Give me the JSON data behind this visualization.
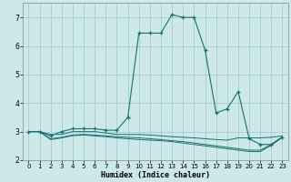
{
  "xlabel": "Humidex (Indice chaleur)",
  "ylabel": "",
  "background_color": "#cce8e8",
  "grid_color": "#aacccc",
  "line_color": "#1a7070",
  "xlim": [
    -0.5,
    23.5
  ],
  "ylim": [
    2.0,
    7.5
  ],
  "xticks": [
    0,
    1,
    2,
    3,
    4,
    5,
    6,
    7,
    8,
    9,
    10,
    11,
    12,
    13,
    14,
    15,
    16,
    17,
    18,
    19,
    20,
    21,
    22,
    23
  ],
  "yticks": [
    2,
    3,
    4,
    5,
    6,
    7
  ],
  "series": [
    {
      "x": [
        0,
        1,
        2,
        3,
        4,
        5,
        6,
        7,
        8,
        9,
        10,
        11,
        12,
        13,
        14,
        15,
        16,
        17,
        18,
        19,
        20,
        21,
        22,
        23
      ],
      "y": [
        3.0,
        3.0,
        2.85,
        3.0,
        3.1,
        3.1,
        3.1,
        3.05,
        3.05,
        3.5,
        6.45,
        6.45,
        6.45,
        7.1,
        7.0,
        7.0,
        5.85,
        3.65,
        3.8,
        4.4,
        2.75,
        2.55,
        2.55,
        2.8
      ],
      "marker": true
    },
    {
      "x": [
        0,
        1,
        2,
        3,
        4,
        5,
        6,
        7,
        8,
        9,
        10,
        11,
        12,
        13,
        14,
        15,
        16,
        17,
        18,
        19,
        20,
        21,
        22,
        23
      ],
      "y": [
        3.0,
        3.0,
        2.9,
        2.9,
        3.0,
        3.0,
        3.0,
        2.95,
        2.9,
        2.9,
        2.9,
        2.88,
        2.85,
        2.82,
        2.8,
        2.78,
        2.75,
        2.72,
        2.7,
        2.78,
        2.78,
        2.78,
        2.8,
        2.85
      ],
      "marker": false
    },
    {
      "x": [
        0,
        1,
        2,
        3,
        4,
        5,
        6,
        7,
        8,
        9,
        10,
        11,
        12,
        13,
        14,
        15,
        16,
        17,
        18,
        19,
        20,
        21,
        22,
        23
      ],
      "y": [
        3.0,
        3.0,
        2.75,
        2.8,
        2.88,
        2.9,
        2.88,
        2.85,
        2.82,
        2.8,
        2.78,
        2.75,
        2.72,
        2.68,
        2.65,
        2.6,
        2.55,
        2.5,
        2.45,
        2.4,
        2.35,
        2.35,
        2.55,
        2.82
      ],
      "marker": false
    },
    {
      "x": [
        0,
        1,
        2,
        3,
        4,
        5,
        6,
        7,
        8,
        9,
        10,
        11,
        12,
        13,
        14,
        15,
        16,
        17,
        18,
        19,
        20,
        21,
        22,
        23
      ],
      "y": [
        3.0,
        3.0,
        2.72,
        2.78,
        2.86,
        2.88,
        2.85,
        2.82,
        2.78,
        2.75,
        2.72,
        2.7,
        2.68,
        2.65,
        2.6,
        2.55,
        2.5,
        2.45,
        2.4,
        2.35,
        2.3,
        2.3,
        2.52,
        2.8
      ],
      "marker": false
    }
  ]
}
